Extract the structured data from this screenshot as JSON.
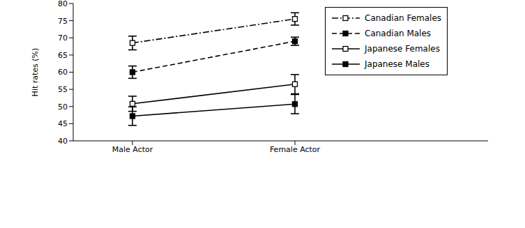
{
  "chart_data": {
    "type": "line",
    "categories": [
      "Male Actor",
      "Female Actor"
    ],
    "y_label": "Hit rates (%)",
    "ylim": [
      40,
      80
    ],
    "yticks": [
      40,
      45,
      50,
      55,
      60,
      65,
      70,
      75,
      80
    ],
    "grid": false,
    "legend": "upper right",
    "series": [
      {
        "name": "Canadian Females",
        "color": "#000000",
        "marker": "open_square",
        "line_style": "dashdot",
        "values": [
          68.5,
          75.5
        ],
        "errors": [
          2.0,
          1.8
        ]
      },
      {
        "name": "Canadian Males",
        "color": "#000000",
        "marker": "filled_square",
        "line_style": "dashed",
        "values": [
          60,
          69
        ],
        "errors": [
          1.8,
          1.2
        ]
      },
      {
        "name": "Japanese Females",
        "color": "#000000",
        "marker": "open_square",
        "line_style": "solid",
        "values": [
          50.8,
          56.5
        ],
        "errors": [
          2.2,
          2.8
        ]
      },
      {
        "name": "Japanese Males",
        "color": "#000000",
        "marker": "filled_square",
        "line_style": "solid",
        "values": [
          47.2,
          50.7
        ],
        "errors": [
          2.7,
          2.8
        ]
      }
    ]
  }
}
